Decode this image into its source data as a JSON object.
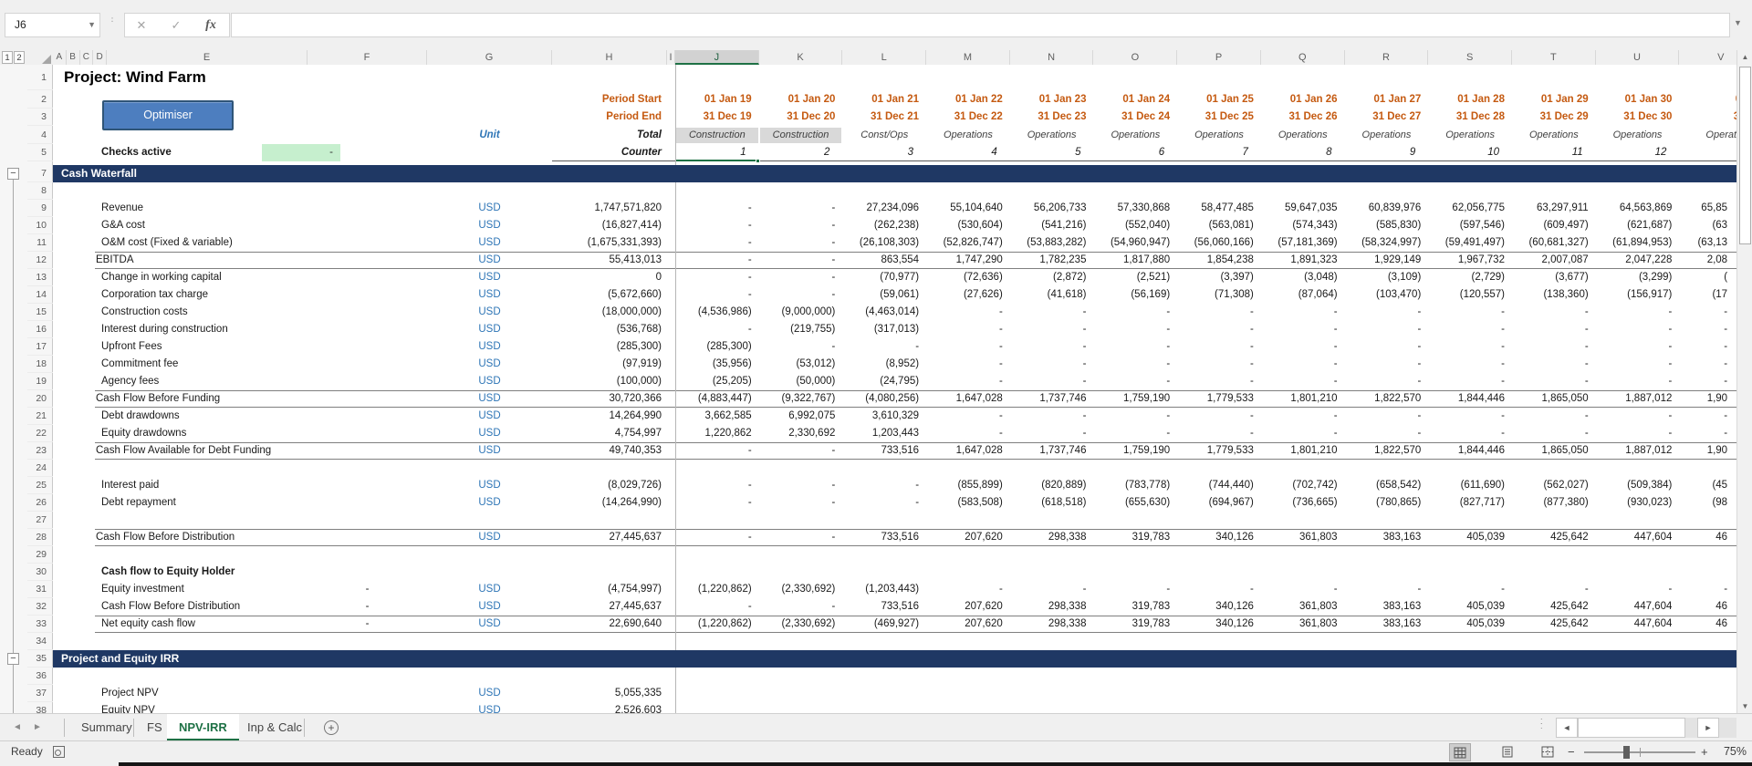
{
  "formula_bar": {
    "name_box": "J6",
    "formula": "",
    "fx": "fx",
    "cancel": "✕",
    "enter": "✓"
  },
  "columns": {
    "outline_levels": [
      "1",
      "2"
    ],
    "group": [
      "A",
      "B",
      "C",
      "D"
    ],
    "fixed": [
      "E",
      "F",
      "G",
      "H",
      "I"
    ],
    "periods": [
      "J",
      "K",
      "L",
      "M",
      "N",
      "O",
      "P",
      "Q",
      "R",
      "S",
      "T",
      "U",
      "V"
    ],
    "selected": "J"
  },
  "colors": {
    "banner_navy": "#1f3864",
    "accent_green": "#1e7145",
    "date_orange": "#c55a11",
    "unit_blue": "#2e75b6",
    "check_green": "#c6efce",
    "button_blue": "#4d7ebf"
  },
  "sheet": {
    "title": "Project: Wind Farm",
    "optimiser_button": "Optimiser",
    "period_start_label": "Period Start",
    "period_end_label": "Period End",
    "unit_label": "Unit",
    "total_label": "Total",
    "counter_label": "Counter",
    "checks_label": "Checks active",
    "checks_value": "-",
    "period_starts": [
      "01 Jan 19",
      "01 Jan 20",
      "01 Jan 21",
      "01 Jan 22",
      "01 Jan 23",
      "01 Jan 24",
      "01 Jan 25",
      "01 Jan 26",
      "01 Jan 27",
      "01 Jan 28",
      "01 Jan 29",
      "01 Jan 30",
      "01 J"
    ],
    "period_ends": [
      "31 Dec 19",
      "31 Dec 20",
      "31 Dec 21",
      "31 Dec 22",
      "31 Dec 23",
      "31 Dec 24",
      "31 Dec 25",
      "31 Dec 26",
      "31 Dec 27",
      "31 Dec 28",
      "31 Dec 29",
      "31 Dec 30",
      "31 D"
    ],
    "period_types": [
      "Construction",
      "Construction",
      "Const/Ops",
      "Operations",
      "Operations",
      "Operations",
      "Operations",
      "Operations",
      "Operations",
      "Operations",
      "Operations",
      "Operations",
      "Operat"
    ],
    "counters": [
      "1",
      "2",
      "3",
      "4",
      "5",
      "6",
      "7",
      "8",
      "9",
      "10",
      "11",
      "12",
      ""
    ],
    "rows": [
      {
        "n": "7",
        "t": "banner",
        "label": "Cash Waterfall"
      },
      {
        "n": "8",
        "t": "blank"
      },
      {
        "n": "9",
        "t": "data",
        "label": "Revenue",
        "unit": "USD",
        "total": "1,747,571,820",
        "vals": [
          "-",
          "-",
          "27,234,096",
          "55,104,640",
          "56,206,733",
          "57,330,868",
          "58,477,485",
          "59,647,035",
          "60,839,976",
          "62,056,775",
          "63,297,911",
          "64,563,869",
          "65,85"
        ]
      },
      {
        "n": "10",
        "t": "data",
        "label": "G&A cost",
        "unit": "USD",
        "total": "(16,827,414)",
        "vals": [
          "-",
          "-",
          "(262,238)",
          "(530,604)",
          "(541,216)",
          "(552,040)",
          "(563,081)",
          "(574,343)",
          "(585,830)",
          "(597,546)",
          "(609,497)",
          "(621,687)",
          "(63"
        ]
      },
      {
        "n": "11",
        "t": "data",
        "label": "O&M cost (Fixed & variable)",
        "unit": "USD",
        "total": "(1,675,331,393)",
        "vals": [
          "-",
          "-",
          "(26,108,303)",
          "(52,826,747)",
          "(53,883,282)",
          "(54,960,947)",
          "(56,060,166)",
          "(57,181,369)",
          "(58,324,997)",
          "(59,491,497)",
          "(60,681,327)",
          "(61,894,953)",
          "(63,13"
        ]
      },
      {
        "n": "12",
        "t": "data",
        "label": "EBITDA",
        "unit": "USD",
        "total": "55,413,013",
        "sub": true,
        "tb": true,
        "bb": true,
        "vals": [
          "-",
          "-",
          "863,554",
          "1,747,290",
          "1,782,235",
          "1,817,880",
          "1,854,238",
          "1,891,323",
          "1,929,149",
          "1,967,732",
          "2,007,087",
          "2,047,228",
          "2,08"
        ]
      },
      {
        "n": "13",
        "t": "data",
        "label": "Change in working capital",
        "unit": "USD",
        "total": "0",
        "vals": [
          "-",
          "-",
          "(70,977)",
          "(72,636)",
          "(2,872)",
          "(2,521)",
          "(3,397)",
          "(3,048)",
          "(3,109)",
          "(2,729)",
          "(3,677)",
          "(3,299)",
          "("
        ]
      },
      {
        "n": "14",
        "t": "data",
        "label": "Corporation tax charge",
        "unit": "USD",
        "total": "(5,672,660)",
        "vals": [
          "-",
          "-",
          "(59,061)",
          "(27,626)",
          "(41,618)",
          "(56,169)",
          "(71,308)",
          "(87,064)",
          "(103,470)",
          "(120,557)",
          "(138,360)",
          "(156,917)",
          "(17"
        ]
      },
      {
        "n": "15",
        "t": "data",
        "label": "Construction costs",
        "unit": "USD",
        "total": "(18,000,000)",
        "vals": [
          "(4,536,986)",
          "(9,000,000)",
          "(4,463,014)",
          "-",
          "-",
          "-",
          "-",
          "-",
          "-",
          "-",
          "-",
          "-",
          "-"
        ]
      },
      {
        "n": "16",
        "t": "data",
        "label": "Interest during construction",
        "unit": "USD",
        "total": "(536,768)",
        "vals": [
          "-",
          "(219,755)",
          "(317,013)",
          "-",
          "-",
          "-",
          "-",
          "-",
          "-",
          "-",
          "-",
          "-",
          "-"
        ]
      },
      {
        "n": "17",
        "t": "data",
        "label": "Upfront Fees",
        "unit": "USD",
        "total": "(285,300)",
        "vals": [
          "(285,300)",
          "-",
          "-",
          "-",
          "-",
          "-",
          "-",
          "-",
          "-",
          "-",
          "-",
          "-",
          "-"
        ]
      },
      {
        "n": "18",
        "t": "data",
        "label": "Commitment fee",
        "unit": "USD",
        "total": "(97,919)",
        "vals": [
          "(35,956)",
          "(53,012)",
          "(8,952)",
          "-",
          "-",
          "-",
          "-",
          "-",
          "-",
          "-",
          "-",
          "-",
          "-"
        ]
      },
      {
        "n": "19",
        "t": "data",
        "label": "Agency fees",
        "unit": "USD",
        "total": "(100,000)",
        "vals": [
          "(25,205)",
          "(50,000)",
          "(24,795)",
          "-",
          "-",
          "-",
          "-",
          "-",
          "-",
          "-",
          "-",
          "-",
          "-"
        ]
      },
      {
        "n": "20",
        "t": "data",
        "label": "Cash Flow Before Funding",
        "unit": "USD",
        "total": "30,720,366",
        "sub": true,
        "tb": true,
        "bb": true,
        "vals": [
          "(4,883,447)",
          "(9,322,767)",
          "(4,080,256)",
          "1,647,028",
          "1,737,746",
          "1,759,190",
          "1,779,533",
          "1,801,210",
          "1,822,570",
          "1,844,446",
          "1,865,050",
          "1,887,012",
          "1,90"
        ]
      },
      {
        "n": "21",
        "t": "data",
        "label": "Debt drawdowns",
        "unit": "USD",
        "total": "14,264,990",
        "vals": [
          "3,662,585",
          "6,992,075",
          "3,610,329",
          "-",
          "-",
          "-",
          "-",
          "-",
          "-",
          "-",
          "-",
          "-",
          "-"
        ]
      },
      {
        "n": "22",
        "t": "data",
        "label": "Equity drawdowns",
        "unit": "USD",
        "total": "4,754,997",
        "vals": [
          "1,220,862",
          "2,330,692",
          "1,203,443",
          "-",
          "-",
          "-",
          "-",
          "-",
          "-",
          "-",
          "-",
          "-",
          "-"
        ]
      },
      {
        "n": "23",
        "t": "data",
        "label": "Cash Flow Available for Debt Funding",
        "unit": "USD",
        "total": "49,740,353",
        "sub": true,
        "tb": true,
        "bb": true,
        "vals": [
          "-",
          "-",
          "733,516",
          "1,647,028",
          "1,737,746",
          "1,759,190",
          "1,779,533",
          "1,801,210",
          "1,822,570",
          "1,844,446",
          "1,865,050",
          "1,887,012",
          "1,90"
        ]
      },
      {
        "n": "24",
        "t": "blank"
      },
      {
        "n": "25",
        "t": "data",
        "label": "Interest paid",
        "unit": "USD",
        "total": "(8,029,726)",
        "vals": [
          "-",
          "-",
          "-",
          "(855,899)",
          "(820,889)",
          "(783,778)",
          "(744,440)",
          "(702,742)",
          "(658,542)",
          "(611,690)",
          "(562,027)",
          "(509,384)",
          "(45"
        ]
      },
      {
        "n": "26",
        "t": "data",
        "label": "Debt repayment",
        "unit": "USD",
        "total": "(14,264,990)",
        "vals": [
          "-",
          "-",
          "-",
          "(583,508)",
          "(618,518)",
          "(655,630)",
          "(694,967)",
          "(736,665)",
          "(780,865)",
          "(827,717)",
          "(877,380)",
          "(930,023)",
          "(98"
        ]
      },
      {
        "n": "27",
        "t": "blank"
      },
      {
        "n": "28",
        "t": "data",
        "label": "Cash Flow Before Distribution",
        "unit": "USD",
        "total": "27,445,637",
        "sub": true,
        "tb": true,
        "bb": true,
        "vals": [
          "-",
          "-",
          "733,516",
          "207,620",
          "298,338",
          "319,783",
          "340,126",
          "361,803",
          "383,163",
          "405,039",
          "425,642",
          "447,604",
          "46"
        ]
      },
      {
        "n": "29",
        "t": "blank"
      },
      {
        "n": "30",
        "t": "text",
        "label": "Cash flow to Equity Holder"
      },
      {
        "n": "31",
        "t": "data",
        "label": "Equity investment",
        "f": "-",
        "unit": "USD",
        "total": "(4,754,997)",
        "vals": [
          "(1,220,862)",
          "(2,330,692)",
          "(1,203,443)",
          "-",
          "-",
          "-",
          "-",
          "-",
          "-",
          "-",
          "-",
          "-",
          "-"
        ]
      },
      {
        "n": "32",
        "t": "data",
        "label": "Cash Flow Before Distribution",
        "f": "-",
        "unit": "USD",
        "total": "27,445,637",
        "vals": [
          "-",
          "-",
          "733,516",
          "207,620",
          "298,338",
          "319,783",
          "340,126",
          "361,803",
          "383,163",
          "405,039",
          "425,642",
          "447,604",
          "46"
        ]
      },
      {
        "n": "33",
        "t": "data",
        "label": "Net equity cash flow",
        "f": "-",
        "unit": "USD",
        "total": "22,690,640",
        "tb": true,
        "bb": true,
        "vals": [
          "(1,220,862)",
          "(2,330,692)",
          "(469,927)",
          "207,620",
          "298,338",
          "319,783",
          "340,126",
          "361,803",
          "383,163",
          "405,039",
          "425,642",
          "447,604",
          "46"
        ]
      },
      {
        "n": "34",
        "t": "blank"
      },
      {
        "n": "35",
        "t": "banner",
        "label": "Project and Equity IRR"
      },
      {
        "n": "36",
        "t": "blank"
      },
      {
        "n": "37",
        "t": "data",
        "label": "Project NPV",
        "unit": "USD",
        "total": "5,055,335",
        "vals": []
      },
      {
        "n": "38",
        "t": "data",
        "label": "Equity NPV",
        "unit": "USD",
        "total": "2,526,603",
        "vals": []
      }
    ]
  },
  "tabs": {
    "nav_left": "◄",
    "nav_right": "►",
    "items": [
      {
        "label": "Summary",
        "active": false
      },
      {
        "label": "FS",
        "active": false
      },
      {
        "label": "NPV-IRR",
        "active": true
      },
      {
        "label": "Inp & Calc",
        "active": false
      }
    ],
    "add_sheet": "+"
  },
  "status_bar": {
    "ready": "Ready",
    "zoom_minus": "−",
    "zoom_plus": "+",
    "zoom_level": "75%"
  }
}
